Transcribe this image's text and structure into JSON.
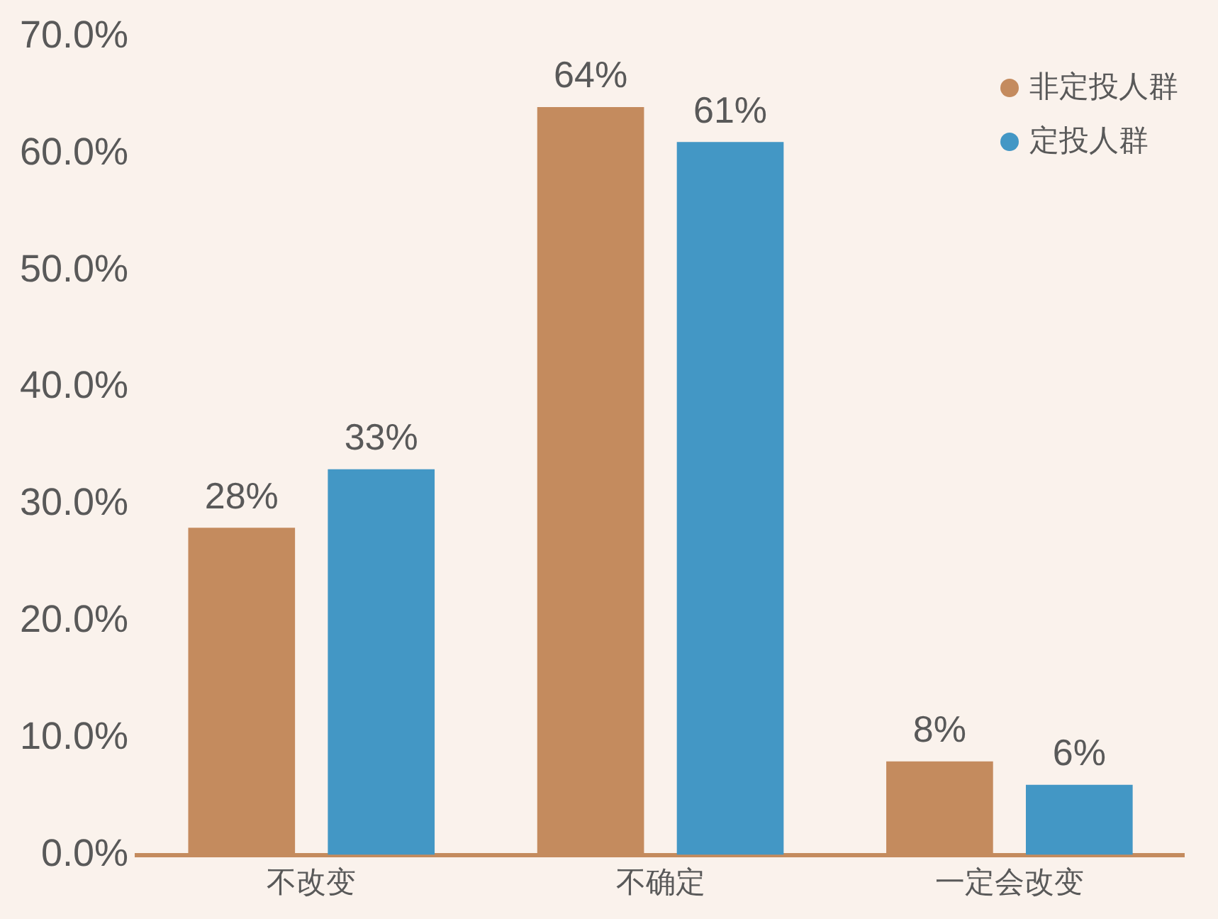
{
  "chart_data": {
    "type": "bar",
    "categories": [
      "不改变",
      "不确定",
      "一定会改变"
    ],
    "series": [
      {
        "name": "非定投人群",
        "color": "#c48b5e",
        "values": [
          28,
          64,
          8
        ],
        "value_labels": [
          "28%",
          "64%",
          "8%"
        ]
      },
      {
        "name": "定投人群",
        "color": "#4397c5",
        "values": [
          33,
          61,
          6
        ],
        "value_labels": [
          "33%",
          "61%",
          "6%"
        ]
      }
    ],
    "ylim": [
      0,
      70
    ],
    "yticks": [
      {
        "value": 0,
        "label": "0.0%"
      },
      {
        "value": 10,
        "label": "10.0%"
      },
      {
        "value": 20,
        "label": "20.0%"
      },
      {
        "value": 30,
        "label": "30.0%"
      },
      {
        "value": 40,
        "label": "40.0%"
      },
      {
        "value": 50,
        "label": "50.0%"
      },
      {
        "value": 60,
        "label": "60.0%"
      },
      {
        "value": 70,
        "label": "70.0%"
      }
    ],
    "grid": false,
    "legend": "top right"
  }
}
